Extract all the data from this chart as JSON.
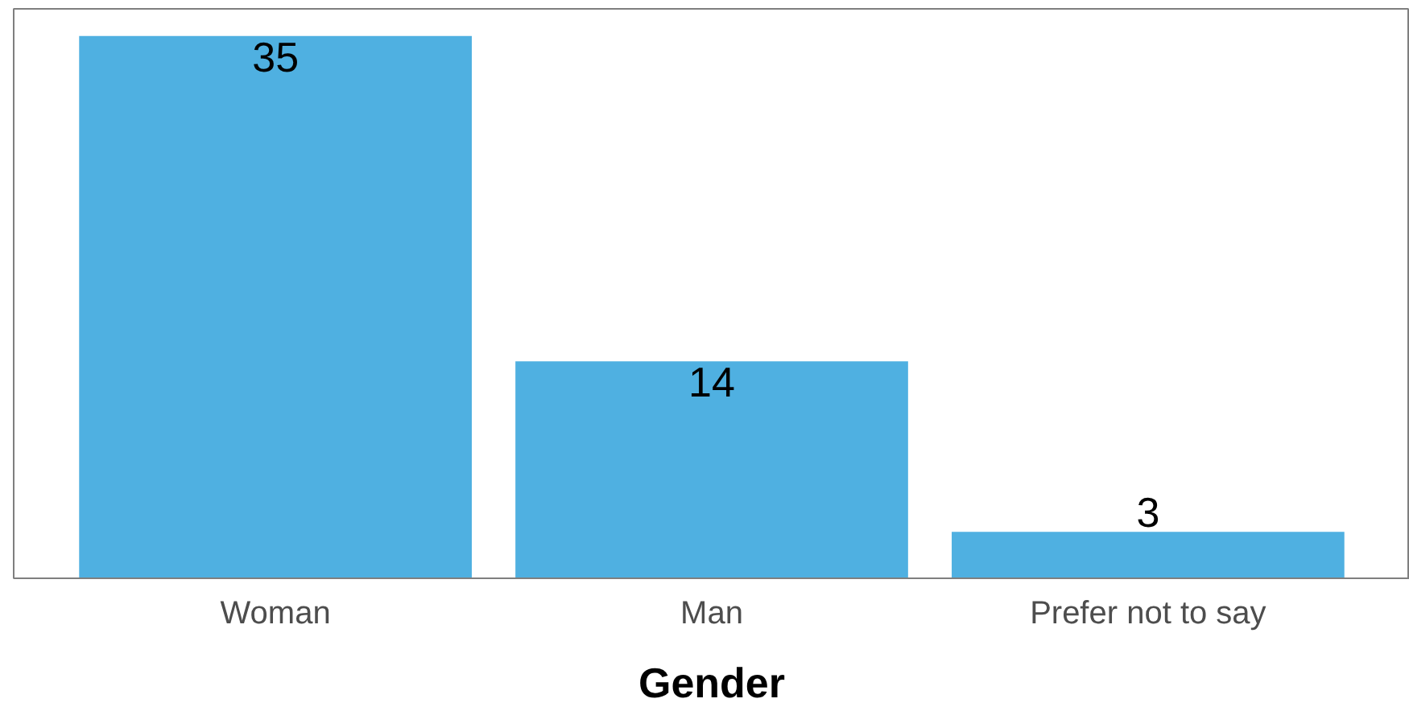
{
  "chart_data": {
    "type": "bar",
    "xlabel": "Gender",
    "categories": [
      "Woman",
      "Man",
      "Prefer not to say"
    ],
    "values": [
      35,
      14,
      3
    ],
    "color": "#4fb0e1",
    "tick_labels": "x",
    "data_labels": true,
    "grid": false
  }
}
